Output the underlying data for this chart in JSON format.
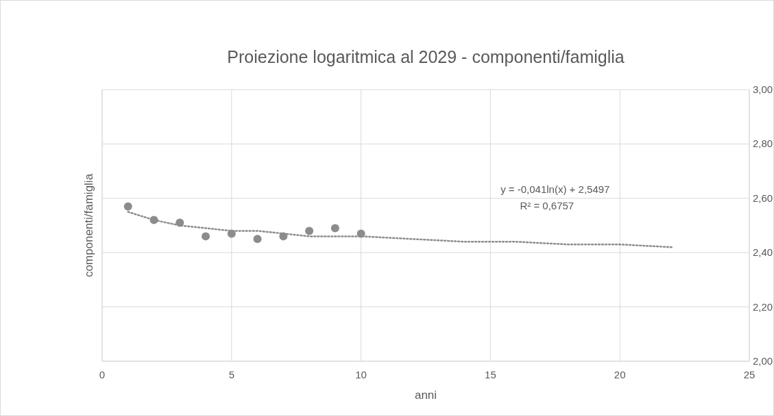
{
  "chart_data": {
    "type": "scatter",
    "title": "Proiezione logaritmica al 2029 - componenti/famiglia",
    "xlabel": "anni",
    "ylabel": "componenti/famiglia",
    "series": [
      {
        "color": "#8c8c8c",
        "marker": "circle",
        "x": [
          1,
          2,
          3,
          4,
          5,
          6,
          7,
          8,
          9,
          10
        ],
        "values": [
          2.57,
          2.52,
          2.51,
          2.46,
          2.47,
          2.45,
          2.46,
          2.48,
          2.49,
          2.47
        ]
      },
      {
        "type": "line",
        "color": "#8c8c8c",
        "line_style": "dotted",
        "marker": "none",
        "x": [
          1,
          2,
          3,
          4,
          5,
          6,
          8,
          10,
          12,
          14,
          16,
          18,
          20,
          22
        ],
        "values": [
          2.55,
          2.52,
          2.5,
          2.49,
          2.48,
          2.48,
          2.46,
          2.46,
          2.45,
          2.44,
          2.44,
          2.43,
          2.43,
          2.42
        ]
      }
    ],
    "xlim": [
      0,
      25
    ],
    "xticks": [
      0,
      5,
      10,
      15,
      20,
      25
    ],
    "ylim": [
      2,
      3
    ],
    "yticks": [
      {
        "value": 2,
        "label": "2,00"
      },
      {
        "value": 2.2,
        "label": "2,20"
      },
      {
        "value": 2.4,
        "label": "2,40"
      },
      {
        "value": 2.6,
        "label": "2,60"
      },
      {
        "value": 2.8,
        "label": "2,80"
      },
      {
        "value": 3,
        "label": "3,00"
      }
    ],
    "grid": true,
    "annotations": [
      "y = -0,041ln(x) + 2,5497",
      "R² = 0,6757"
    ]
  }
}
